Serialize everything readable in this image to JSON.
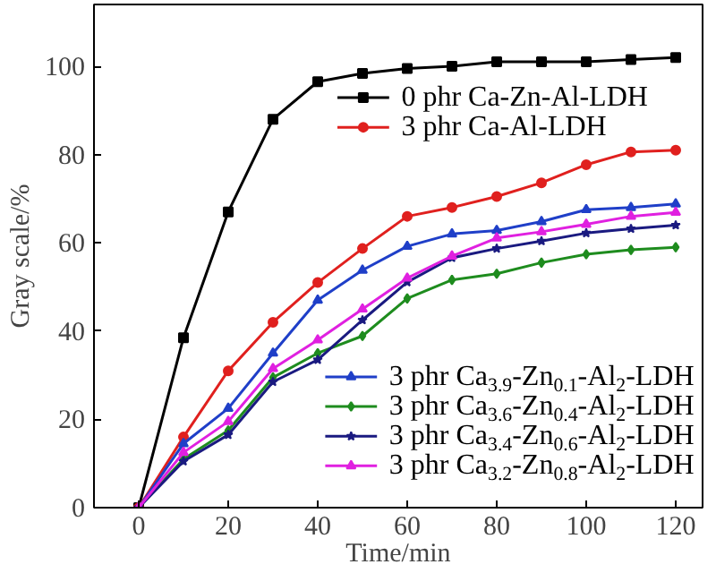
{
  "chart_data": {
    "type": "line",
    "xlabel": "Time/min",
    "ylabel": "Gray scale/%",
    "x": [
      0,
      10,
      20,
      30,
      40,
      50,
      60,
      70,
      80,
      90,
      100,
      110,
      120
    ],
    "xlim": [
      -10,
      126
    ],
    "xticks": [
      0,
      20,
      40,
      60,
      80,
      100,
      120
    ],
    "ylim": [
      0,
      114
    ],
    "yticks": [
      0,
      20,
      40,
      60,
      80,
      100
    ],
    "grid": false,
    "legend": "right",
    "line_style": "solid",
    "series": [
      {
        "name": "0 phr Ca-Zn-Al-LDH",
        "color": "#000000",
        "marker": "square",
        "values": [
          0,
          38.5,
          67,
          88,
          96.5,
          98.4,
          99.5,
          100,
          101,
          101,
          101,
          101.5,
          102
        ]
      },
      {
        "name": "3 phr Ca-Al-LDH",
        "color": "#e0201e",
        "marker": "circle",
        "values": [
          0,
          16,
          31,
          42,
          51,
          58.7,
          66,
          68,
          70.5,
          73.6,
          77.7,
          80.6,
          81
        ]
      },
      {
        "name": "3 phr Ca$_{3.9}$-Zn$_{0.1}$-Al$_{2}$-LDH",
        "color": "#1f3fc8",
        "marker": "triangle",
        "values": [
          0,
          14.5,
          22.5,
          35,
          47,
          53.8,
          59.2,
          62,
          62.8,
          64.8,
          67.5,
          68,
          68.8
        ]
      },
      {
        "name": "3 phr Ca$_{3.6}$-Zn$_{0.4}$-Al$_{2}$-LDH",
        "color": "#1e8c1e",
        "marker": "diamond",
        "values": [
          0,
          11,
          17.5,
          29.5,
          35,
          38.9,
          47.4,
          51.6,
          53,
          55.5,
          57.4,
          58.4,
          59
        ]
      },
      {
        "name": "3 phr Ca$_{3.4}$-Zn$_{0.6}$-Al$_{2}$-LDH",
        "color": "#1a1a80",
        "marker": "star",
        "values": [
          0,
          10.5,
          16.5,
          28.5,
          33.5,
          42.5,
          51.1,
          56.6,
          58.7,
          60.4,
          62.2,
          63.2,
          64
        ]
      },
      {
        "name": "3 phr Ca$_{3.2}$-Zn$_{0.8}$-Al$_{2}$-LDH",
        "color": "#e020e0",
        "marker": "triangle",
        "values": [
          0,
          12.5,
          19.5,
          31.5,
          38,
          45,
          52,
          57,
          61.1,
          62.5,
          64.2,
          66,
          66.9
        ]
      }
    ]
  }
}
